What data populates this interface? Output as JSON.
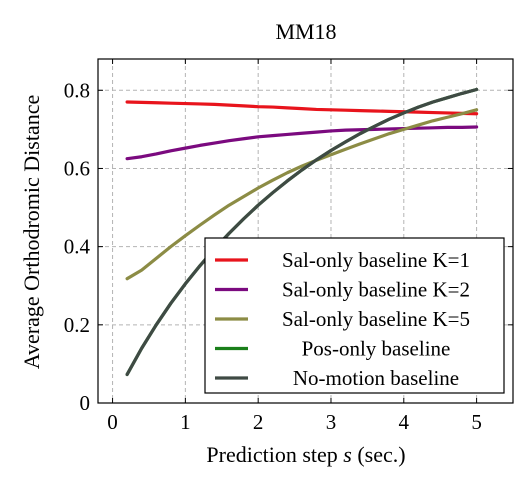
{
  "chart_data": {
    "type": "line",
    "title": "MM18",
    "xlabel_main": "Prediction step ",
    "xlabel_var": "s",
    "xlabel_unit": " (sec.)",
    "ylabel": "Average Orthodromic Distance",
    "xlim": [
      -0.2,
      5.5
    ],
    "ylim": [
      0,
      0.88
    ],
    "xticks": [
      0,
      1,
      2,
      3,
      4,
      5
    ],
    "yticks": [
      0,
      0.2,
      0.4,
      0.6,
      0.8
    ],
    "xtick_labels": [
      "0",
      "1",
      "2",
      "3",
      "4",
      "5"
    ],
    "ytick_labels": [
      "0",
      "0.2",
      "0.4",
      "0.6",
      "0.8"
    ],
    "grid": true,
    "legend_position": "bottom-right",
    "x": [
      0.2,
      0.4,
      0.6,
      0.8,
      1.0,
      1.2,
      1.4,
      1.6,
      1.8,
      2.0,
      2.2,
      2.4,
      2.6,
      2.8,
      3.0,
      3.2,
      3.4,
      3.6,
      3.8,
      4.0,
      4.2,
      4.4,
      4.6,
      4.8,
      5.0
    ],
    "series": [
      {
        "name": "Sal-only baseline K=1",
        "color": "#e8141c",
        "values": [
          0.77,
          0.769,
          0.768,
          0.767,
          0.766,
          0.765,
          0.764,
          0.762,
          0.76,
          0.758,
          0.757,
          0.755,
          0.753,
          0.751,
          0.75,
          0.749,
          0.748,
          0.747,
          0.746,
          0.745,
          0.744,
          0.743,
          0.742,
          0.741,
          0.74
        ]
      },
      {
        "name": "Sal-only baseline K=2",
        "color": "#7b0a7f",
        "values": [
          0.625,
          0.63,
          0.637,
          0.645,
          0.652,
          0.659,
          0.665,
          0.671,
          0.676,
          0.681,
          0.684,
          0.687,
          0.69,
          0.693,
          0.696,
          0.698,
          0.699,
          0.7,
          0.701,
          0.702,
          0.703,
          0.704,
          0.705,
          0.705,
          0.706
        ]
      },
      {
        "name": "Sal-only baseline K=5",
        "color": "#8c8c45",
        "values": [
          0.318,
          0.34,
          0.37,
          0.4,
          0.428,
          0.455,
          0.481,
          0.506,
          0.528,
          0.55,
          0.57,
          0.589,
          0.606,
          0.621,
          0.635,
          0.649,
          0.663,
          0.676,
          0.689,
          0.7,
          0.711,
          0.722,
          0.731,
          0.74,
          0.75
        ]
      },
      {
        "name": "Pos-only baseline",
        "color": "#1a7f1a",
        "values": [
          0.073,
          0.14,
          0.2,
          0.255,
          0.305,
          0.351,
          0.394,
          0.434,
          0.471,
          0.506,
          0.538,
          0.568,
          0.596,
          0.622,
          0.646,
          0.668,
          0.689,
          0.708,
          0.726,
          0.742,
          0.757,
          0.77,
          0.781,
          0.792,
          0.802
        ]
      },
      {
        "name": "No-motion baseline",
        "color": "#3f4a44",
        "values": [
          0.073,
          0.14,
          0.2,
          0.255,
          0.305,
          0.351,
          0.394,
          0.434,
          0.471,
          0.506,
          0.538,
          0.568,
          0.596,
          0.622,
          0.646,
          0.668,
          0.689,
          0.708,
          0.726,
          0.742,
          0.757,
          0.77,
          0.781,
          0.792,
          0.802
        ]
      }
    ]
  }
}
